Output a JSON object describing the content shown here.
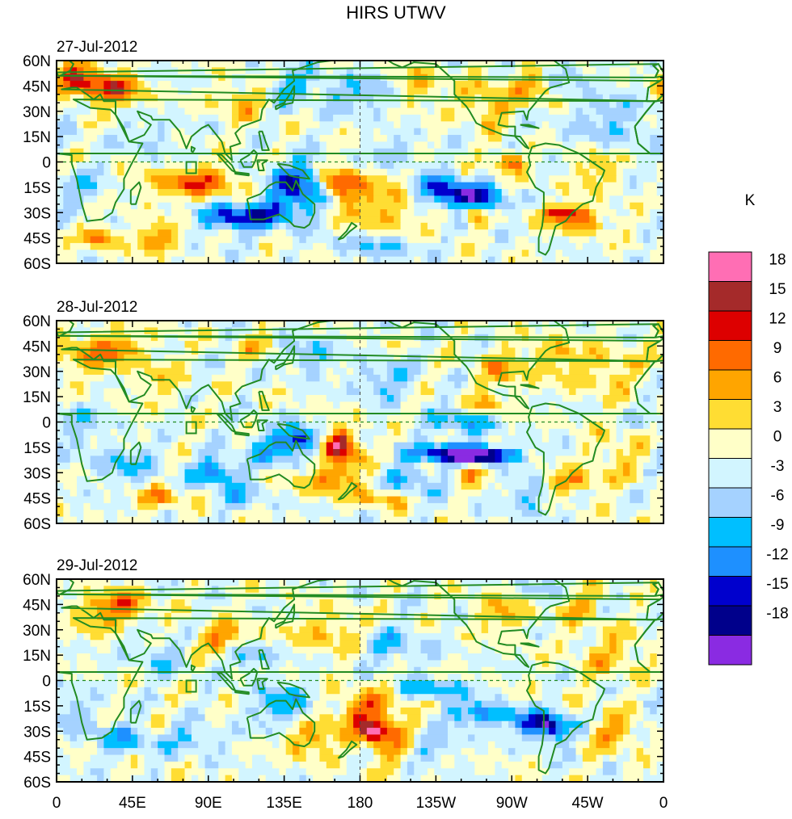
{
  "title": "HIRS UTWV",
  "panels": [
    {
      "date": "27-Jul-2012"
    },
    {
      "date": "28-Jul-2012"
    },
    {
      "date": "29-Jul-2012"
    }
  ],
  "lat_labels": [
    "60N",
    "45N",
    "30N",
    "15N",
    "0",
    "15S",
    "30S",
    "45S",
    "60S"
  ],
  "lon_labels": [
    "0",
    "45E",
    "90E",
    "135E",
    "180",
    "135W",
    "90W",
    "45W",
    "0"
  ],
  "colorbar": {
    "unit": "K",
    "tick_labels": [
      "18",
      "15",
      "12",
      "9",
      "6",
      "3",
      "0",
      "-3",
      "-6",
      "-9",
      "-12",
      "-15",
      "-18"
    ],
    "colors": [
      "#ff6eb4",
      "#a52a2a",
      "#dd0000",
      "#ff6a00",
      "#ffa500",
      "#ffdd33",
      "#ffffc8",
      "#d2f5ff",
      "#a5d2ff",
      "#00bfff",
      "#1e90ff",
      "#0000cd",
      "#00008b",
      "#8a2be2"
    ]
  },
  "coast_color": "#228b22"
}
